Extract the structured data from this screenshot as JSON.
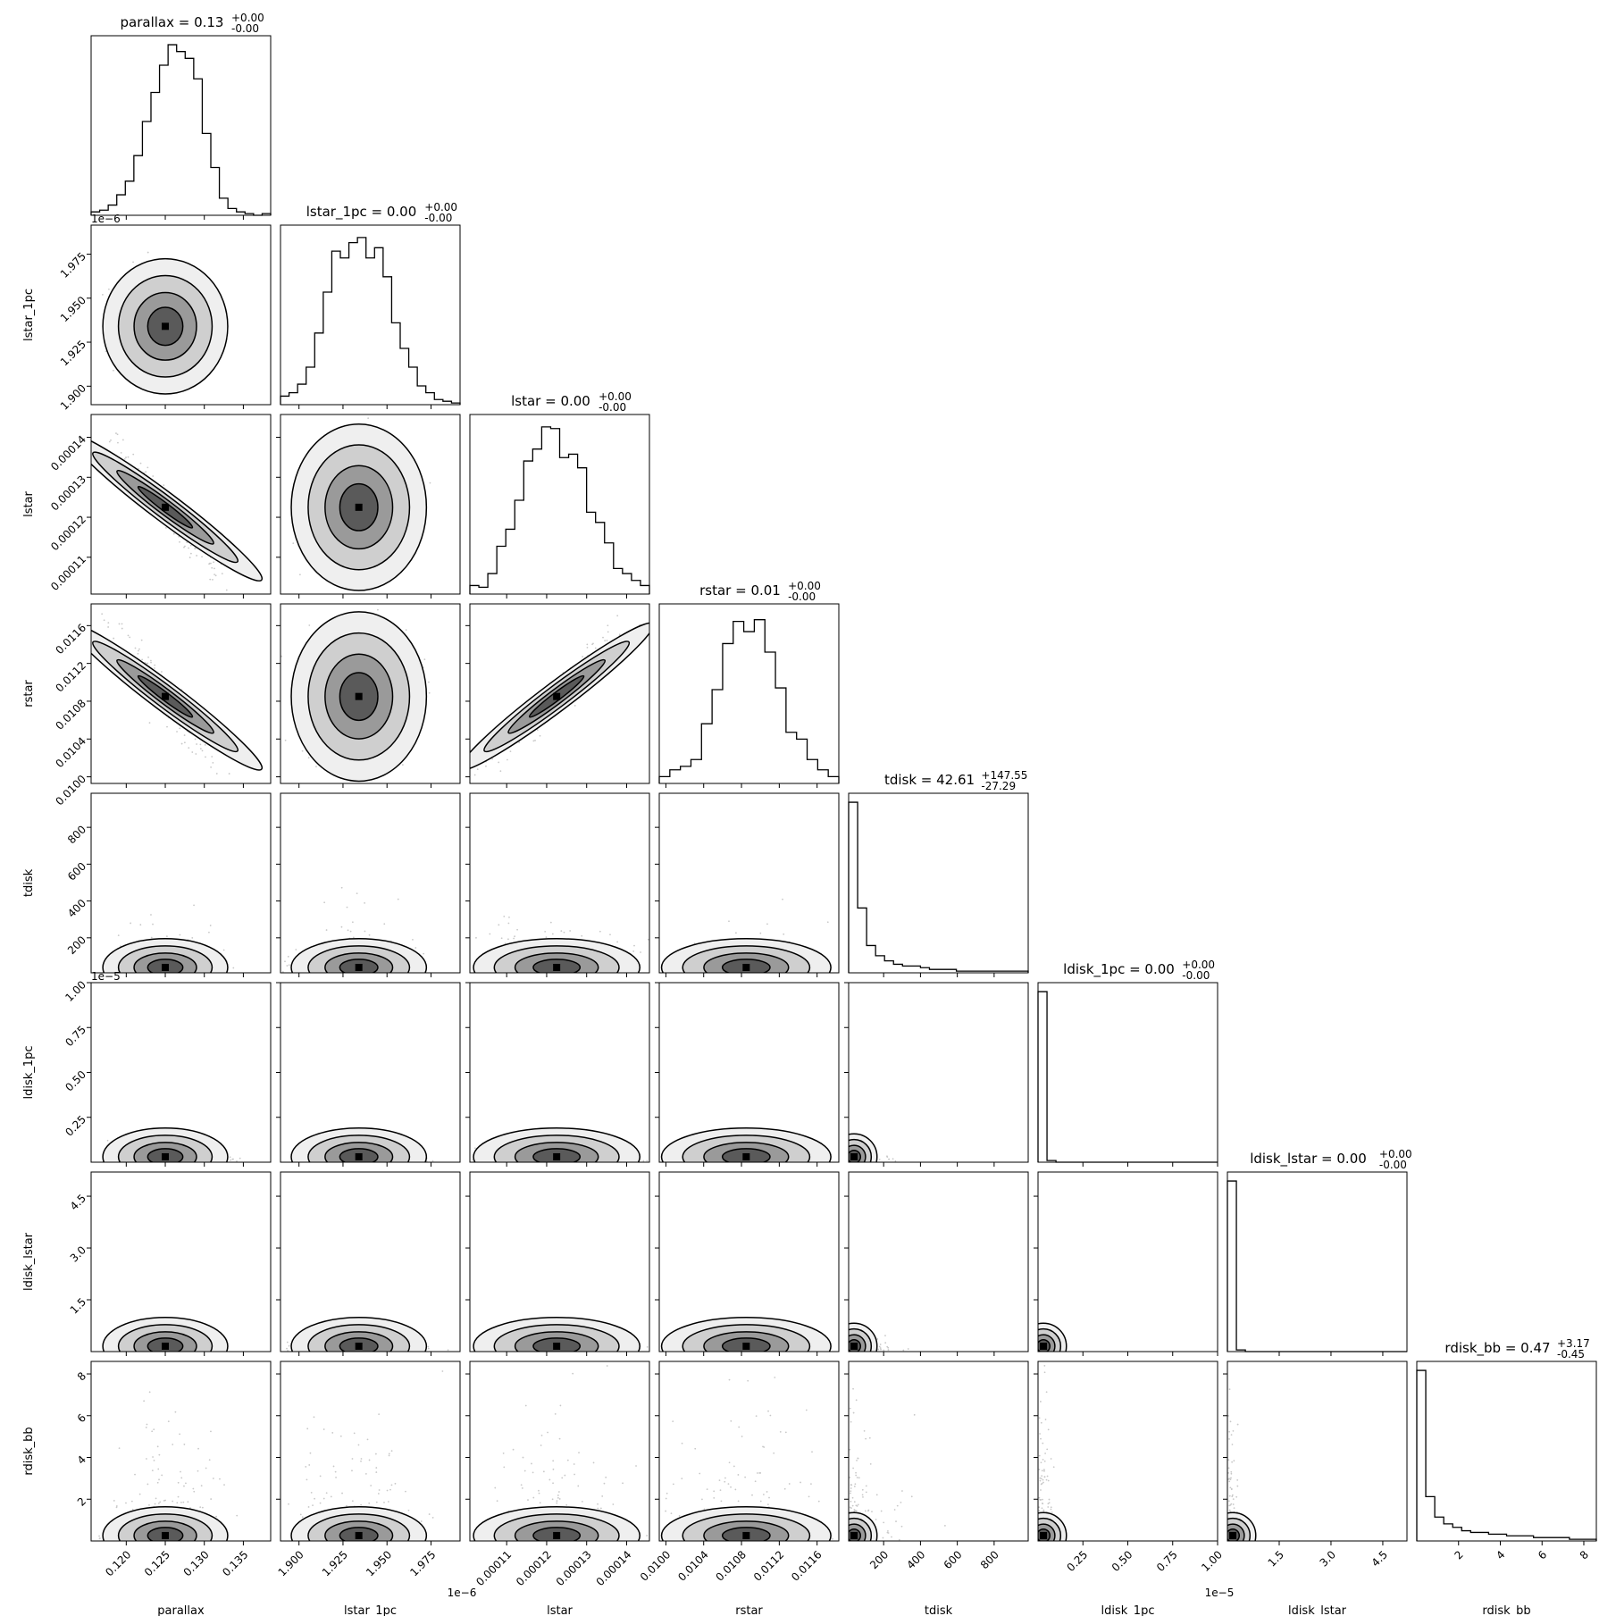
{
  "chart_data": {
    "type": "corner",
    "params": [
      {
        "name": "parallax",
        "title": "parallax = 0.13",
        "sup": "+0.00",
        "sub": "-0.00",
        "range": [
          0.1155,
          0.1385
        ],
        "ticks": [
          0.12,
          0.125,
          0.13,
          0.135
        ],
        "tick_labels": [
          "0.120",
          "0.125",
          "0.130",
          "0.135"
        ],
        "offset": "",
        "center": 0.125,
        "sigma": 0.0025,
        "skew": false
      },
      {
        "name": "lstar_1pc",
        "title": "lstar_1pc = 0.00",
        "sup": "+0.00",
        "sub": "-0.00",
        "range": [
          1.8895,
          1.9915
        ],
        "ticks": [
          1.9,
          1.925,
          1.95,
          1.975
        ],
        "tick_labels": [
          "1.900",
          "1.925",
          "1.950",
          "1.975"
        ],
        "offset": "1e−6",
        "center": 1.934,
        "sigma": 0.012,
        "skew": false
      },
      {
        "name": "lstar",
        "title": "lstar = 0.00",
        "sup": "+0.00",
        "sub": "-0.00",
        "range": [
          0.0001008,
          0.0001457
        ],
        "ticks": [
          0.00011,
          0.00012,
          0.00013,
          0.00014
        ],
        "tick_labels": [
          "0.00011",
          "0.00012",
          "0.00013",
          "0.00014"
        ],
        "offset": "",
        "center": 0.0001225,
        "sigma": 6.5e-06,
        "skew": false
      },
      {
        "name": "rstar",
        "title": "rstar = 0.01",
        "sup": "+0.00",
        "sub": "-0.00",
        "range": [
          0.00993,
          0.01183
        ],
        "ticks": [
          0.01,
          0.0104,
          0.0108,
          0.0112,
          0.0116
        ],
        "tick_labels": [
          "0.0100",
          "0.0104",
          "0.0108",
          "0.0112",
          "0.0116"
        ],
        "offset": "",
        "center": 0.01085,
        "sigma": 0.00028,
        "skew": false
      },
      {
        "name": "tdisk",
        "title": "tdisk = 42.61",
        "sup": "+147.55",
        "sub": "-27.29",
        "range": [
          10,
          985
        ],
        "ticks": [
          200,
          400,
          600,
          800
        ],
        "tick_labels": [
          "200",
          "400",
          "600",
          "800"
        ],
        "offset": "",
        "center": 42.61,
        "sigma": 147,
        "skew": true
      },
      {
        "name": "ldisk_1pc",
        "title": "ldisk_1pc = 0.00",
        "sup": "+0.00",
        "sub": "-0.00",
        "range": [
          0.0,
          1.0
        ],
        "ticks": [
          0.25,
          0.5,
          0.75,
          1.0
        ],
        "tick_labels": [
          "0.25",
          "0.50",
          "0.75",
          "1.00"
        ],
        "offset": "1e−5",
        "center": 0.02,
        "sigma": 0.05,
        "skew": true
      },
      {
        "name": "ldisk_lstar",
        "title": "ldisk_lstar = 0.00",
        "sup": "+0.00",
        "sub": "-0.00",
        "range": [
          0.0,
          5.2
        ],
        "ticks": [
          1.5,
          3.0,
          4.5
        ],
        "tick_labels": [
          "1.5",
          "3.0",
          "4.5"
        ],
        "offset": "",
        "center": 0.1,
        "sigma": 0.2,
        "skew": true
      },
      {
        "name": "rdisk_bb",
        "title": "rdisk_bb = 0.47",
        "sup": "+3.17",
        "sub": "-0.45",
        "range": [
          0.0,
          8.6
        ],
        "ticks": [
          2,
          4,
          6,
          8
        ],
        "tick_labels": [
          "2",
          "4",
          "6",
          "8"
        ],
        "offset": "",
        "center": 0.47,
        "sigma": 3.17,
        "skew": true
      }
    ],
    "histograms": [
      [
        2,
        3,
        6,
        12,
        20,
        35,
        55,
        72,
        88,
        100,
        96,
        92,
        80,
        48,
        28,
        10,
        4,
        2,
        1,
        0,
        1
      ],
      [
        5,
        7,
        12,
        22,
        42,
        66,
        90,
        86,
        95,
        98,
        86,
        92,
        75,
        48,
        33,
        22,
        11,
        7,
        3,
        2,
        1
      ],
      [
        5,
        4,
        12,
        28,
        38,
        55,
        78,
        85,
        98,
        97,
        80,
        82,
        74,
        48,
        42,
        30,
        15,
        12,
        8,
        5
      ],
      [
        4,
        8,
        10,
        14,
        35,
        55,
        82,
        95,
        89,
        96,
        77,
        56,
        30,
        26,
        14,
        8,
        4
      ],
      [
        100,
        38,
        16,
        10,
        7,
        5,
        4,
        4,
        3,
        2,
        2,
        2,
        1,
        1,
        1,
        1,
        1,
        1,
        1,
        1
      ],
      [
        100,
        1,
        0,
        0,
        0,
        0,
        0,
        0,
        0,
        0,
        0,
        0,
        0,
        0,
        0,
        0,
        0,
        0,
        0,
        0
      ],
      [
        100,
        1,
        0,
        0,
        0,
        0,
        0,
        0,
        0,
        0,
        0,
        0,
        0,
        0,
        0,
        0,
        0,
        0,
        0,
        0
      ],
      [
        100,
        26,
        14,
        10,
        8,
        6,
        5,
        5,
        4,
        4,
        3,
        3,
        3,
        2,
        2,
        2,
        2,
        1,
        1,
        1
      ]
    ],
    "contour_levels": [
      "0.5-sigma",
      "1-sigma",
      "1.5-sigma",
      "2-sigma"
    ],
    "grid": false
  }
}
